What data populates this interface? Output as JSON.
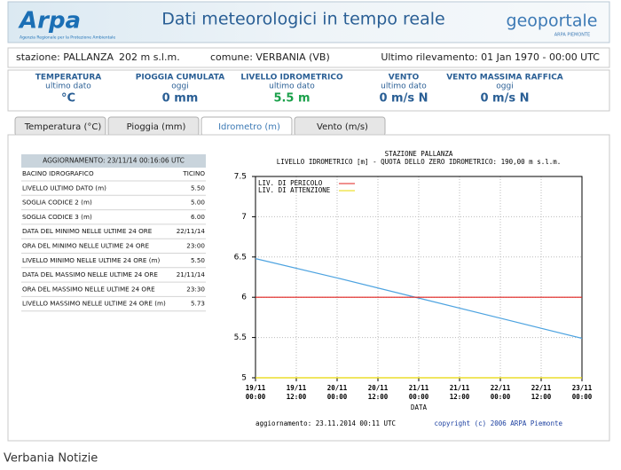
{
  "header": {
    "logo": "Arpa",
    "logo_subtitle": "Agenzia Regionale per la Protezione Ambientale",
    "title": "Dati meteorologici in tempo reale",
    "brand": "geoportale",
    "brand_subtitle": "ARPA PIEMONTE"
  },
  "station": {
    "name": "stazione: PALLANZA",
    "altitude": "202 m s.l.m.",
    "municipality": "comune: VERBANIA (VB)",
    "last_reading": "Ultimo rilevamento: 01 Jan 1970 - 00:00 UTC"
  },
  "summary": [
    {
      "label": "TEMPERATURA",
      "sub": "ultimo dato",
      "value": "°C"
    },
    {
      "label": "PIOGGIA CUMULATA",
      "sub": "oggi",
      "value": "0 mm"
    },
    {
      "label": "LIVELLO IDROMETRICO",
      "sub": "ultimo dato",
      "value": "5.5 m"
    },
    {
      "label": "VENTO",
      "sub": "ultimo dato",
      "value": "0 m/s N"
    },
    {
      "label": "VENTO MASSIMA RAFFICA",
      "sub": "oggi",
      "value": "0 m/s N"
    }
  ],
  "tabs": [
    "Temperatura (°C)",
    "Pioggia (mm)",
    "Idrometro (m)",
    "Vento (m/s)"
  ],
  "table": {
    "header": "AGGIORNAMENTO: 23/11/14 00:16:06 UTC",
    "rows": [
      [
        "BACINO IDROGRAFICO",
        "TICINO"
      ],
      [
        "LIVELLO ULTIMO DATO (m)",
        "5.50"
      ],
      [
        "SOGLIA CODICE 2 (m)",
        "5.00"
      ],
      [
        "SOGLIA CODICE 3 (m)",
        "6.00"
      ],
      [
        "DATA DEL MINIMO NELLE ULTIME 24 ORE",
        "22/11/14"
      ],
      [
        "ORA DEL MINIMO NELLE ULTIME 24 ORE",
        "23:00"
      ],
      [
        "LIVELLO MINIMO NELLE ULTIME 24 ORE (m)",
        "5.50"
      ],
      [
        "DATA DEL MASSIMO NELLE ULTIME 24 ORE",
        "21/11/14"
      ],
      [
        "ORA DEL MASSIMO NELLE ULTIME 24 ORE",
        "23:30"
      ],
      [
        "LIVELLO MASSIMO NELLE ULTIME 24 ORE (m)",
        "5.73"
      ]
    ]
  },
  "chart_data": {
    "type": "line",
    "title": "STAZIONE PALLANZA",
    "subtitle": "LIVELLO IDROMETRICO [m] - QUOTA DELLO ZERO IDROMETRICO: 190,00  m s.l.m.",
    "x_label": "DATA",
    "xticks": [
      {
        "date": "19/11",
        "time": "00:00"
      },
      {
        "date": "19/11",
        "time": "12:00"
      },
      {
        "date": "20/11",
        "time": "00:00"
      },
      {
        "date": "20/11",
        "time": "12:00"
      },
      {
        "date": "21/11",
        "time": "00:00"
      },
      {
        "date": "21/11",
        "time": "12:00"
      },
      {
        "date": "22/11",
        "time": "00:00"
      },
      {
        "date": "22/11",
        "time": "12:00"
      },
      {
        "date": "23/11",
        "time": "00:00"
      }
    ],
    "x": [
      "19/11 00:00",
      "20/11 00:00",
      "21/11 00:00",
      "22/11 00:00",
      "23/11 00:00"
    ],
    "series": [
      {
        "color": "#4da3e0",
        "values": [
          6.48,
          6.24,
          5.99,
          5.74,
          5.49
        ]
      },
      {
        "name": "LIV. DI PERICOLO",
        "color": "#e0201e",
        "values": [
          6,
          6,
          6,
          6,
          6
        ]
      },
      {
        "name": "LIV. DI ATTENZIONE",
        "color": "#e8d800",
        "values": [
          5,
          5,
          5,
          5,
          5
        ]
      }
    ],
    "ylim": [
      5,
      7.5
    ],
    "yticks": [
      5,
      5.5,
      6,
      6.5,
      7,
      7.5
    ],
    "grid": true,
    "footer": "aggiornamento: 23.11.2014 00:11 UTC",
    "credit": "copyright (c) 2006 ARPA Piemonte"
  },
  "caption": "Verbania Notizie"
}
